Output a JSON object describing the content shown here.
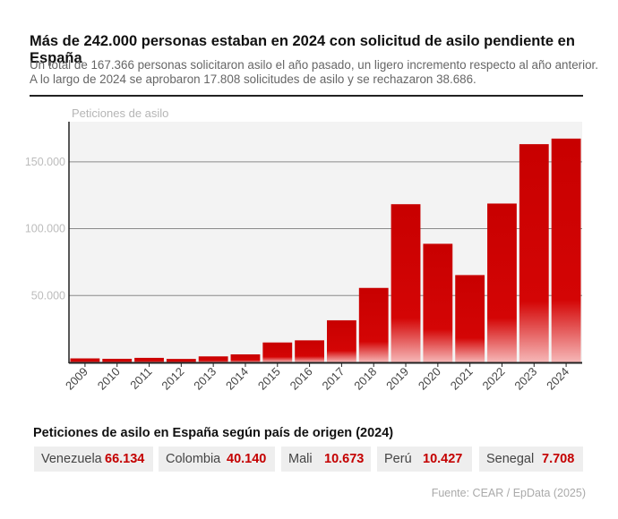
{
  "header": {
    "title": "Más de 242.000 personas estaban en 2024 con solicitud de asilo pendiente en España",
    "subtitle_line1": "Un total de 167.366 personas solicitaron asilo el año pasado, un ligero incremento respecto al año anterior.",
    "subtitle_line2": "A lo largo de 2024 se aprobaron 17.808 solicitudes de asilo y se rechazaron 38.686."
  },
  "chart_data": {
    "type": "bar",
    "ylabel": "Peticiones de asilo",
    "categories": [
      "2009",
      "2010",
      "2011",
      "2012",
      "2013",
      "2014",
      "2015",
      "2016",
      "2017",
      "2018",
      "2019",
      "2020",
      "2021",
      "2022",
      "2023",
      "2024"
    ],
    "values": [
      3000,
      2700,
      3400,
      2600,
      4500,
      6000,
      14900,
      16500,
      31500,
      55700,
      118300,
      88700,
      65300,
      118800,
      163200,
      167366
    ],
    "ylim": [
      0,
      180000
    ],
    "yticks": [
      50000,
      100000,
      150000
    ],
    "ytick_labels": [
      "50.000",
      "100.000",
      "150.000"
    ],
    "grid": true,
    "bar_color": "#c80000"
  },
  "breakdown": {
    "title": "Peticiones de asilo en España según país de origen (2024)",
    "items": [
      {
        "country": "Venezuela",
        "value": "66.134"
      },
      {
        "country": "Colombia",
        "value": "40.140"
      },
      {
        "country": "Mali",
        "value": "10.673"
      },
      {
        "country": "Perú",
        "value": "10.427"
      },
      {
        "country": "Senegal",
        "value": "7.708"
      }
    ]
  },
  "source": "Fuente: CEAR / EpData (2025)"
}
